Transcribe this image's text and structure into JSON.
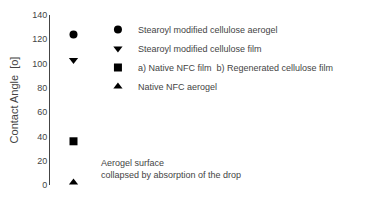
{
  "chart_data": {
    "type": "scatter",
    "ylabel": "Contact Angle  [o]",
    "categories": [
      null
    ],
    "series": [
      {
        "name": "Stearoyl modified cellulose aerogel",
        "color": "black",
        "marker": "circle",
        "values": [
          124
        ]
      },
      {
        "name": "Stearoyl modified cellulose film",
        "color": "black",
        "marker": "triangle-down",
        "values": [
          103
        ]
      },
      {
        "name": "a) Native NFC film  b) Regenerated cellulose film",
        "color": "black",
        "marker": "square",
        "values": [
          36
        ]
      },
      {
        "name": "Native NFC aerogel",
        "color": "black",
        "marker": "triangle-up",
        "values": [
          2
        ]
      }
    ],
    "ylim": [
      0,
      140
    ],
    "yticks": [
      0,
      20,
      40,
      60,
      80,
      100,
      120,
      140
    ],
    "grid": false,
    "legend": "upper right",
    "tick_labels": "y",
    "annotation": "Aerogel surface\ncollapsed by absorption of the drop"
  }
}
